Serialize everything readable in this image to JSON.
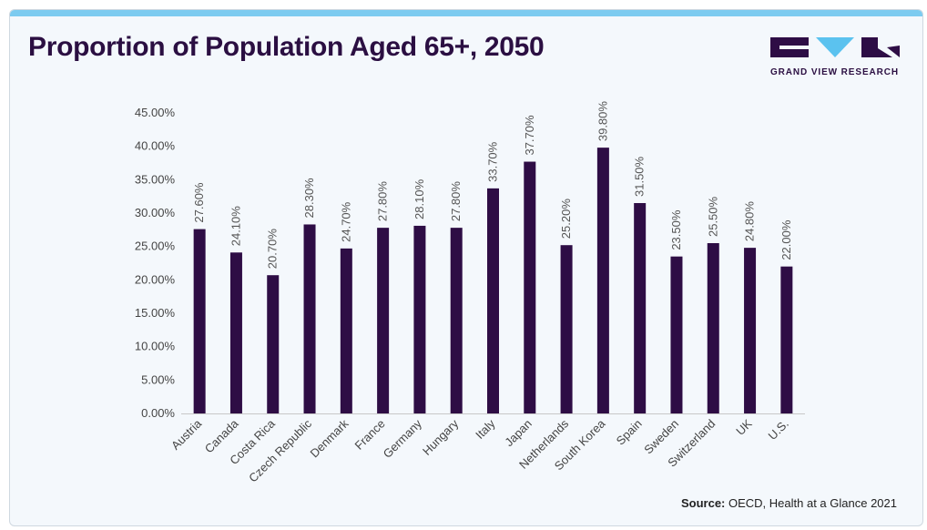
{
  "header": {
    "title": "Proportion of Population Aged 65+, 2050",
    "logo_text": "GRAND VIEW RESEARCH"
  },
  "footer": {
    "source_label": "Source:",
    "source_text": " OECD, Health at a Glance 2021"
  },
  "colors": {
    "bar": "#2e0d45",
    "accent_top": "#7ccbf0",
    "logo_chevron": "#5bc2ef"
  },
  "chart_data": {
    "type": "bar",
    "title": "Proportion of Population Aged 65+, 2050",
    "categories": [
      "Austria",
      "Canada",
      "Costa Rica",
      "Czech Republic",
      "Denmark",
      "France",
      "Germany",
      "Hungary",
      "Italy",
      "Japan",
      "Netherlands",
      "South Korea",
      "Spain",
      "Sweden",
      "Switzerland",
      "UK",
      "U.S."
    ],
    "values": [
      27.6,
      24.1,
      20.7,
      28.3,
      24.7,
      27.8,
      28.1,
      27.8,
      33.7,
      37.7,
      25.2,
      39.8,
      31.5,
      23.5,
      25.5,
      24.8,
      22.0
    ],
    "data_labels": [
      "27.60%",
      "24.10%",
      "20.70%",
      "28.30%",
      "24.70%",
      "27.80%",
      "28.10%",
      "27.80%",
      "33.70%",
      "37.70%",
      "25.20%",
      "39.80%",
      "31.50%",
      "23.50%",
      "25.50%",
      "24.80%",
      "22.00%"
    ],
    "y_ticks": [
      "0.00%",
      "5.00%",
      "10.00%",
      "15.00%",
      "20.00%",
      "25.00%",
      "30.00%",
      "35.00%",
      "40.00%",
      "45.00%"
    ],
    "ylim": [
      0,
      45
    ],
    "xlabel": "",
    "ylabel": "",
    "grid": false,
    "legend": "none"
  }
}
